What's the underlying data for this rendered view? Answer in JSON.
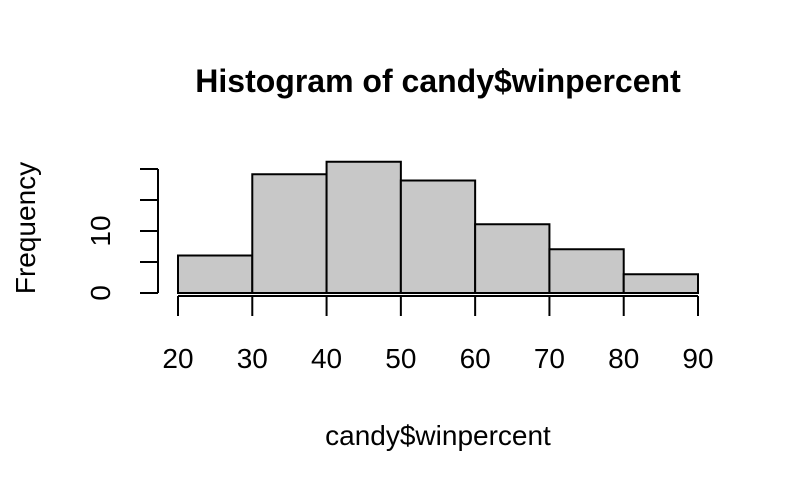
{
  "chart_data": {
    "type": "bar",
    "title": "Histogram of candy$winpercent",
    "xlabel": "candy$winpercent",
    "ylabel": "Frequency",
    "bin_edges": [
      20,
      30,
      40,
      50,
      60,
      70,
      80,
      90
    ],
    "categories": [
      "20-30",
      "30-40",
      "40-50",
      "50-60",
      "60-70",
      "70-80",
      "80-90"
    ],
    "values": [
      6,
      19,
      21,
      18,
      11,
      7,
      3
    ],
    "x_ticks": [
      "20",
      "30",
      "40",
      "50",
      "60",
      "70",
      "80",
      "90"
    ],
    "y_ticks": [
      0,
      5,
      10,
      15,
      20
    ],
    "y_tick_labels": [
      "0",
      "",
      "10",
      "",
      ""
    ],
    "xlim": [
      20,
      90
    ],
    "ylim": [
      0,
      21
    ],
    "grid": false,
    "bar_color": "#c8c8c8",
    "edge_color": "#000000"
  }
}
